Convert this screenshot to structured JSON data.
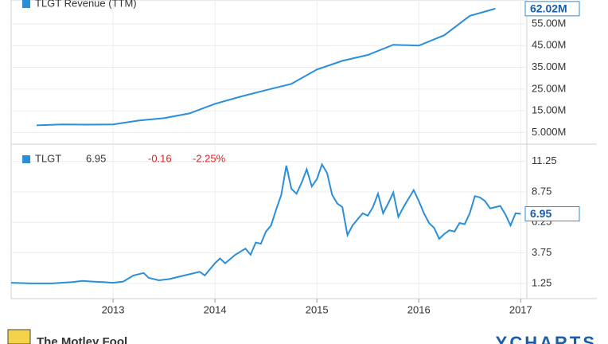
{
  "chart_data": [
    {
      "type": "line",
      "series": [
        {
          "name": "TLGT Revenue (TTM)",
          "color": "#2a8fd8",
          "x": [
            2012.25,
            2012.5,
            2012.75,
            2013.0,
            2013.25,
            2013.5,
            2013.75,
            2014.0,
            2014.25,
            2014.5,
            2014.75,
            2015.0,
            2015.25,
            2015.5,
            2015.75,
            2016.0,
            2016.25,
            2016.5,
            2016.75
          ],
          "values": [
            8300000,
            8700000,
            8600000,
            8700000,
            10500000,
            11600000,
            13800000,
            18200000,
            21500000,
            24500000,
            27400000,
            34000000,
            38000000,
            40700000,
            45400000,
            45000000,
            49800000,
            58700000,
            62020000
          ],
          "value_labels": [
            null,
            null,
            null,
            null,
            null,
            null,
            null,
            null,
            null,
            null,
            null,
            null,
            null,
            null,
            null,
            null,
            null,
            null,
            "62.02M"
          ]
        }
      ],
      "xlim": [
        2012.0,
        2017.06
      ],
      "ylim": [
        0,
        66000000
      ],
      "yticks": [
        {
          "value": 5000000,
          "label": "5.000M"
        },
        {
          "value": 15000000,
          "label": "15.00M"
        },
        {
          "value": 25000000,
          "label": "25.00M"
        },
        {
          "value": 35000000,
          "label": "35.00M"
        },
        {
          "value": 45000000,
          "label": "45.00M"
        },
        {
          "value": 55000000,
          "label": "55.00M"
        }
      ],
      "grid": true
    },
    {
      "type": "line",
      "series": [
        {
          "name": "TLGT",
          "color": "#2a8fd8",
          "x": [
            2012.0,
            2012.2,
            2012.4,
            2012.6,
            2012.7,
            2012.8,
            2012.9,
            2013.0,
            2013.1,
            2013.2,
            2013.3,
            2013.35,
            2013.45,
            2013.55,
            2013.65,
            2013.75,
            2013.85,
            2013.9,
            2014.0,
            2014.05,
            2014.1,
            2014.2,
            2014.3,
            2014.35,
            2014.4,
            2014.45,
            2014.5,
            2014.55,
            2014.6,
            2014.65,
            2014.7,
            2014.75,
            2014.8,
            2014.85,
            2014.9,
            2014.95,
            2015.0,
            2015.05,
            2015.1,
            2015.15,
            2015.2,
            2015.25,
            2015.3,
            2015.35,
            2015.4,
            2015.45,
            2015.5,
            2015.55,
            2015.6,
            2015.65,
            2015.7,
            2015.75,
            2015.8,
            2015.85,
            2015.9,
            2015.95,
            2016.0,
            2016.05,
            2016.1,
            2016.15,
            2016.2,
            2016.25,
            2016.3,
            2016.35,
            2016.4,
            2016.45,
            2016.5,
            2016.55,
            2016.6,
            2016.65,
            2016.7,
            2016.75,
            2016.8,
            2016.85,
            2016.9,
            2016.95,
            2017.0
          ],
          "values": [
            1.3,
            1.25,
            1.25,
            1.35,
            1.45,
            1.4,
            1.35,
            1.3,
            1.4,
            1.9,
            2.1,
            1.7,
            1.5,
            1.6,
            1.8,
            2.0,
            2.2,
            1.9,
            2.9,
            3.3,
            2.9,
            3.6,
            4.1,
            3.6,
            4.6,
            4.5,
            5.5,
            6.0,
            7.3,
            8.5,
            10.9,
            9.0,
            8.6,
            9.5,
            10.6,
            9.2,
            9.8,
            11.0,
            10.3,
            8.5,
            7.8,
            7.5,
            5.2,
            6.0,
            6.5,
            7.0,
            6.8,
            7.5,
            8.6,
            7.0,
            7.8,
            8.7,
            6.7,
            7.5,
            8.2,
            8.9,
            8.0,
            7.0,
            6.2,
            5.8,
            4.9,
            5.3,
            5.6,
            5.5,
            6.2,
            6.1,
            7.0,
            8.4,
            8.3,
            8.0,
            7.4,
            7.5,
            7.6,
            6.9,
            6.0,
            7.0,
            6.95
          ]
        }
      ],
      "change": -0.16,
      "change_pct": {
        "value": -2.25,
        "label": "-2.25%"
      },
      "change_color": "#e02020",
      "xlim": [
        2012.0,
        2017.06
      ],
      "ylim": [
        0,
        12.6
      ],
      "xticks": [
        2013,
        2014,
        2015,
        2016,
        2017
      ],
      "yticks": [
        1.25,
        3.75,
        6.25,
        8.75,
        11.25
      ],
      "grid": true
    }
  ],
  "footer": {
    "left": "The Motley Fool",
    "right": "YCHARTS"
  }
}
